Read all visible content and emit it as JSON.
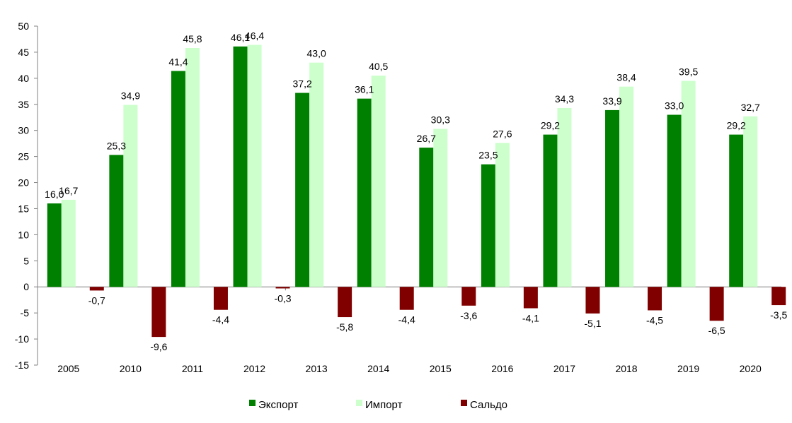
{
  "chart_data": {
    "type": "bar",
    "title": "",
    "xlabel": "",
    "ylabel": "",
    "categories": [
      "2005",
      "2010",
      "2011",
      "2012",
      "2013",
      "2014",
      "2015",
      "2016",
      "2017",
      "2018",
      "2019",
      "2020"
    ],
    "series": [
      {
        "name": "Экспорт",
        "color": "#008000",
        "values": [
          16.0,
          25.3,
          41.4,
          46.1,
          37.2,
          36.1,
          26.7,
          23.5,
          29.2,
          33.9,
          33.0,
          29.2
        ],
        "labels": [
          "16,0",
          "25,3",
          "41,4",
          "46,1",
          "37,2",
          "36,1",
          "26,7",
          "23,5",
          "29,2",
          "33,9",
          "33,0",
          "29,2"
        ]
      },
      {
        "name": "Импорт",
        "color": "#ccffcc",
        "values": [
          16.7,
          34.9,
          45.8,
          46.4,
          43.0,
          40.5,
          30.3,
          27.6,
          34.3,
          38.4,
          39.5,
          32.7
        ],
        "labels": [
          "16,7",
          "34,9",
          "45,8",
          "46,4",
          "43,0",
          "40,5",
          "30,3",
          "27,6",
          "34,3",
          "38,4",
          "39,5",
          "32,7"
        ]
      },
      {
        "name": "Сальдо",
        "color": "#800000",
        "values": [
          -0.7,
          -9.6,
          -4.4,
          -0.3,
          -5.8,
          -4.4,
          -3.6,
          -4.1,
          -5.1,
          -4.5,
          -6.5,
          -3.5
        ],
        "labels": [
          "-0,7",
          "-9,6",
          "-4,4",
          "-0,3",
          "-5,8",
          "-4,4",
          "-3,6",
          "-4,1",
          "-5,1",
          "-4,5",
          "-6,5",
          "-3,5"
        ]
      }
    ],
    "ylim": [
      -15,
      50
    ],
    "yticks": [
      "-15",
      "-10",
      "-5",
      "0",
      "5",
      "10",
      "15",
      "20",
      "25",
      "30",
      "35",
      "40",
      "45",
      "50"
    ],
    "grid": false,
    "legend_position": "bottom-center"
  }
}
